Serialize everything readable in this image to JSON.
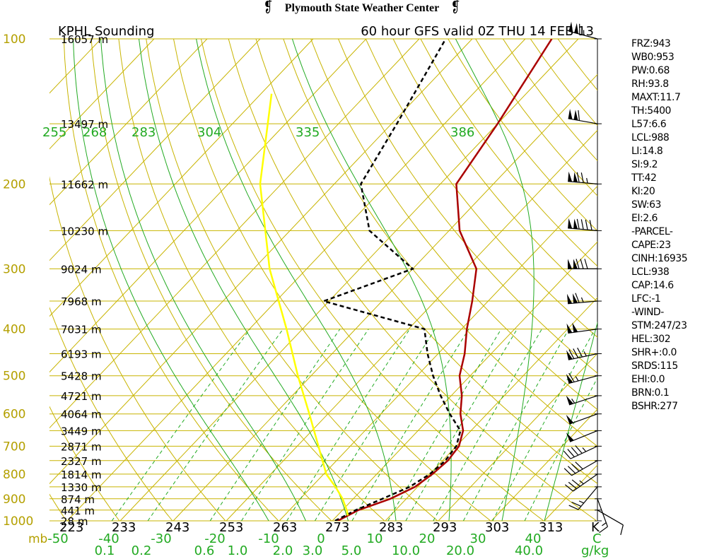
{
  "banner": {
    "title": "Plymouth State Weather Center",
    "left_logo": "flame-logo-icon",
    "right_logo": "flame-logo-icon"
  },
  "chart_data": {
    "type": "line",
    "station_title": "KPHL Sounding",
    "valid_title": "60 hour GFS valid 0Z THU 14 FEB 13",
    "pressure_levels_mb": [
      1000,
      900,
      800,
      700,
      600,
      500,
      400,
      300,
      200,
      100
    ],
    "temperature_ticks_c": [
      -50,
      -40,
      -30,
      -20,
      -10,
      0,
      10,
      20,
      30,
      40
    ],
    "temperature_axis_end_label": "C",
    "pressure_unit_label": "mb",
    "mixing_ratio_labels": [
      "0.1",
      "0.2",
      "0.6",
      "1.0",
      "2.0",
      "3.0",
      "5.0",
      "10.0",
      "20.0",
      "40.0"
    ],
    "mixing_ratio_unit": "g/kg",
    "dry_adiabat_labels_k": [
      "223",
      "233",
      "243",
      "253",
      "263",
      "273",
      "283",
      "293",
      "303",
      "313"
    ],
    "dry_adiabat_unit": "K",
    "moist_adiabat_labels_k": [
      "255",
      "268",
      "283",
      "304",
      "335",
      "386"
    ],
    "heights": [
      {
        "p": 100,
        "label": "16057 m"
      },
      {
        "p": 150,
        "label": "13497 m"
      },
      {
        "p": 200,
        "label": "11662 m"
      },
      {
        "p": 250,
        "label": "10230 m"
      },
      {
        "p": 300,
        "label": "9024 m"
      },
      {
        "p": 350,
        "label": "7968 m"
      },
      {
        "p": 400,
        "label": "7031 m"
      },
      {
        "p": 450,
        "label": "6193 m"
      },
      {
        "p": 500,
        "label": "5428 m"
      },
      {
        "p": 550,
        "label": "4721 m"
      },
      {
        "p": 600,
        "label": "4064 m"
      },
      {
        "p": 650,
        "label": "3449 m"
      },
      {
        "p": 700,
        "label": "2871 m"
      },
      {
        "p": 750,
        "label": "2327 m"
      },
      {
        "p": 800,
        "label": "1814 m"
      },
      {
        "p": 850,
        "label": "1330 m"
      },
      {
        "p": 900,
        "label": "874 m"
      },
      {
        "p": 950,
        "label": "441 m"
      },
      {
        "p": 1000,
        "label": "28 m"
      }
    ],
    "series": [
      {
        "name": "temperature",
        "color": "#aa0000",
        "points": [
          [
            1000,
            1
          ],
          [
            975,
            2
          ],
          [
            950,
            3
          ],
          [
            925,
            5
          ],
          [
            900,
            7
          ],
          [
            850,
            9.5
          ],
          [
            800,
            10.5
          ],
          [
            750,
            11
          ],
          [
            700,
            10.5
          ],
          [
            650,
            8.5
          ],
          [
            600,
            5
          ],
          [
            550,
            2
          ],
          [
            500,
            -2
          ],
          [
            450,
            -5
          ],
          [
            400,
            -9
          ],
          [
            350,
            -13
          ],
          [
            300,
            -18
          ],
          [
            250,
            -28
          ],
          [
            200,
            -37
          ],
          [
            150,
            -40
          ],
          [
            100,
            -45
          ]
        ]
      },
      {
        "name": "dewpoint",
        "color": "#000000",
        "points": [
          [
            1000,
            0.5
          ],
          [
            975,
            1.5
          ],
          [
            950,
            2.5
          ],
          [
            925,
            4
          ],
          [
            900,
            5.5
          ],
          [
            850,
            8.5
          ],
          [
            800,
            10
          ],
          [
            750,
            10.5
          ],
          [
            700,
            10
          ],
          [
            650,
            8
          ],
          [
            600,
            3
          ],
          [
            550,
            -2
          ],
          [
            500,
            -7
          ],
          [
            450,
            -12
          ],
          [
            400,
            -17
          ],
          [
            350,
            -41
          ],
          [
            300,
            -30
          ],
          [
            250,
            -45
          ],
          [
            200,
            -55
          ],
          [
            150,
            -59
          ],
          [
            100,
            -65
          ]
        ]
      },
      {
        "name": "parcel",
        "color": "#ffff00",
        "points": [
          [
            975,
            2
          ],
          [
            950,
            0.8
          ],
          [
            900,
            -2
          ],
          [
            850,
            -5.5
          ],
          [
            800,
            -9.5
          ],
          [
            700,
            -16
          ],
          [
            600,
            -23.5
          ],
          [
            500,
            -32.5
          ],
          [
            400,
            -43
          ],
          [
            300,
            -57
          ],
          [
            200,
            -74
          ],
          [
            130,
            -88
          ]
        ]
      }
    ],
    "stats": {
      "items": [
        "FRZ:943",
        "WB0:953",
        "PW:0.68",
        "RH:93.8",
        "MAXT:11.7",
        "TH:5400",
        "L57:6.6",
        "LCL:988",
        "LI:14.8",
        "SI:9.2",
        "TT:42",
        "KI:20",
        "SW:63",
        "EI:2.6",
        "-PARCEL-",
        "CAPE:23",
        "CINH:16935",
        "LCL:938",
        "CAP:14.6",
        "LFC:-1",
        "-WIND-",
        "STM:247/23",
        "HEL:302",
        "SHR+:0.0",
        "SRDS:115",
        "EHI:0.0",
        "BRN:0.1",
        "BSHR:277"
      ]
    },
    "wind_barbs": [
      {
        "p": 100,
        "dir": 285,
        "kt": 115
      },
      {
        "p": 150,
        "dir": 280,
        "kt": 110
      },
      {
        "p": 200,
        "dir": 275,
        "kt": 125
      },
      {
        "p": 250,
        "dir": 275,
        "kt": 140
      },
      {
        "p": 300,
        "dir": 270,
        "kt": 130
      },
      {
        "p": 350,
        "dir": 265,
        "kt": 115
      },
      {
        "p": 400,
        "dir": 262,
        "kt": 100
      },
      {
        "p": 450,
        "dir": 258,
        "kt": 85
      },
      {
        "p": 500,
        "dir": 255,
        "kt": 65
      },
      {
        "p": 550,
        "dir": 252,
        "kt": 55
      },
      {
        "p": 600,
        "dir": 250,
        "kt": 50
      },
      {
        "p": 650,
        "dir": 248,
        "kt": 50
      },
      {
        "p": 700,
        "dir": 245,
        "kt": 45
      },
      {
        "p": 750,
        "dir": 240,
        "kt": 40
      },
      {
        "p": 800,
        "dir": 235,
        "kt": 35
      },
      {
        "p": 850,
        "dir": 220,
        "kt": 25
      },
      {
        "p": 900,
        "dir": 160,
        "kt": 15
      },
      {
        "p": 950,
        "dir": 120,
        "kt": 10
      }
    ],
    "colors": {
      "isobar": "#c8b400",
      "isotherm": "#c8b400",
      "dry_adiabat": "#c8b400",
      "moist_adiabat": "#22aa22",
      "mixing_ratio": "#22aa22",
      "label_yellow": "#b4a000",
      "label_green": "#22aa22"
    }
  }
}
